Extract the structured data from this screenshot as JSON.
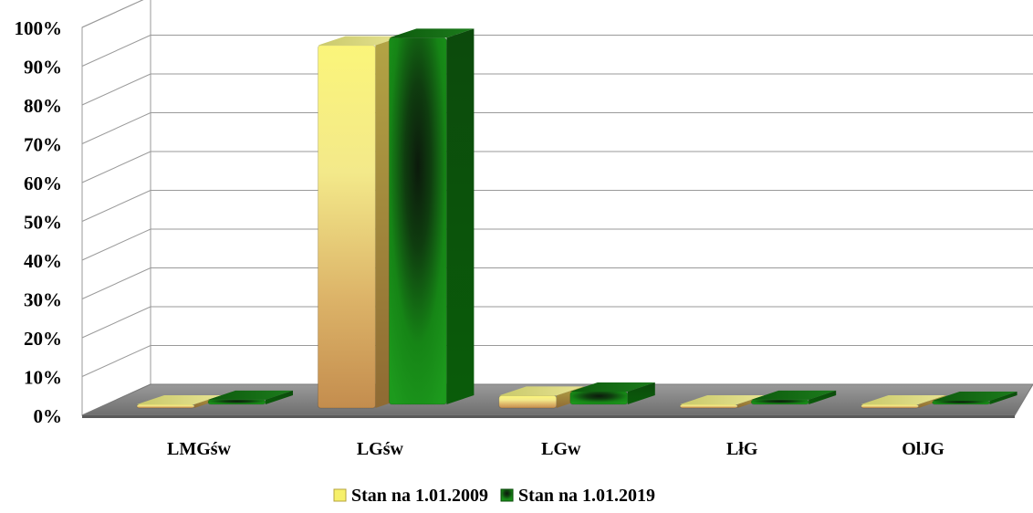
{
  "chart_data": {
    "type": "bar",
    "title": "",
    "xlabel": "",
    "ylabel": "",
    "ylim": [
      0,
      100
    ],
    "y_ticks": [
      "0%",
      "10%",
      "20%",
      "30%",
      "40%",
      "50%",
      "60%",
      "70%",
      "80%",
      "90%",
      "100%"
    ],
    "y_unit": "%",
    "grid": true,
    "legend_position": "bottom",
    "categories": [
      "LMGśw",
      "LGśw",
      "LGw",
      "LłG",
      "OlJG"
    ],
    "series": [
      {
        "name": "Stan na 1.01.2009",
        "color": "#f6f06a",
        "values": [
          0.5,
          93.5,
          3.2,
          0.3,
          0.2
        ]
      },
      {
        "name": "Stan na 1.01.2019",
        "color": "#1d8f1d",
        "values": [
          1.2,
          94.5,
          3.3,
          1.2,
          0.4
        ]
      }
    ]
  }
}
